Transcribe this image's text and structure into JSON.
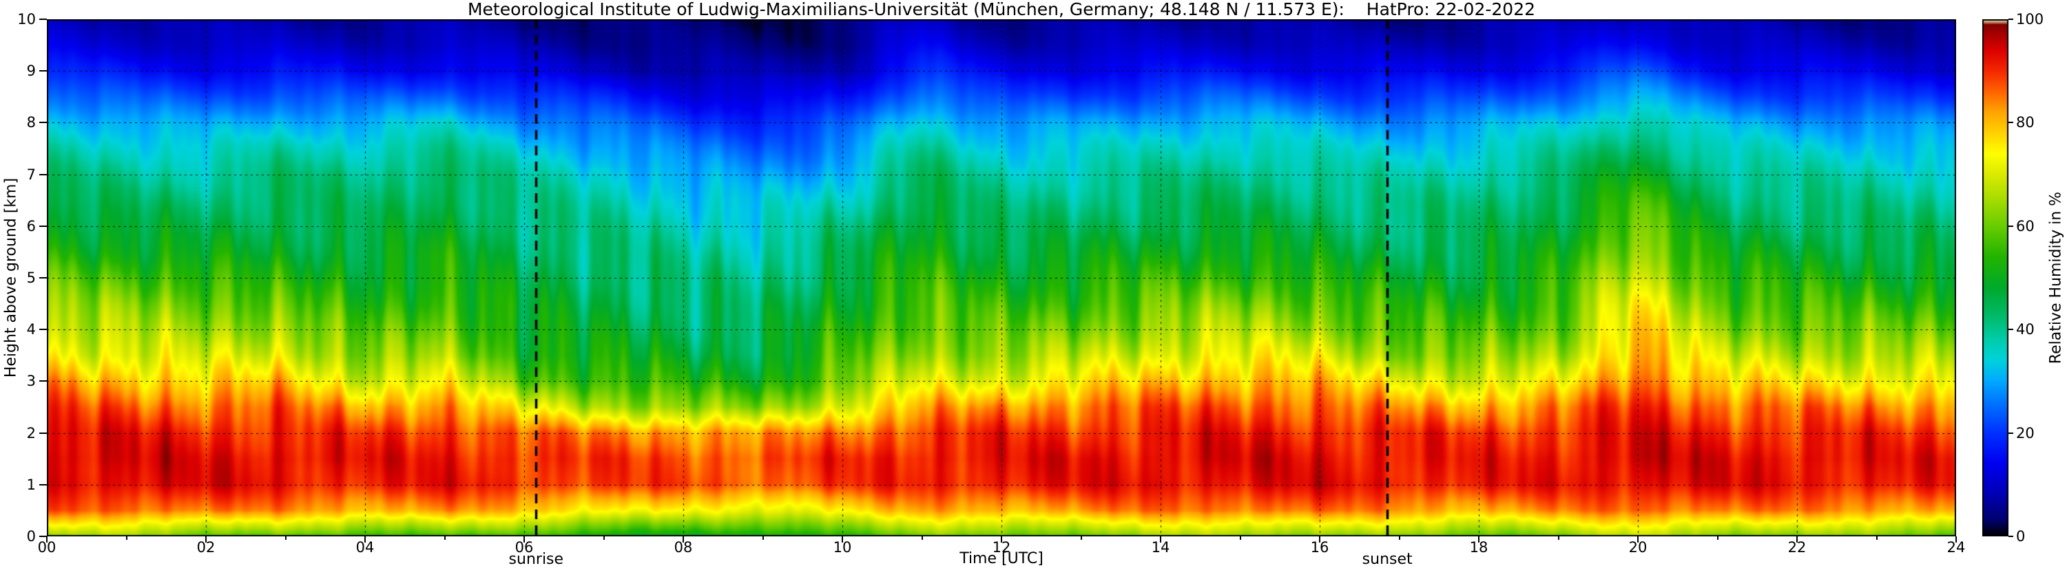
{
  "title": "Meteorological Institute of Ludwig-Maximilians-Universität (München, Germany; 48.148 N / 11.573 E):    HatPro: 22-02-2022",
  "axes": {
    "x_label": "Time [UTC]",
    "y_label": "Height above ground [km]",
    "x_ticks": [
      "00",
      "02",
      "04",
      "06",
      "08",
      "10",
      "12",
      "14",
      "16",
      "18",
      "20",
      "22",
      "24"
    ],
    "y_ticks": [
      "0",
      "1",
      "2",
      "3",
      "4",
      "5",
      "6",
      "7",
      "8",
      "9",
      "10"
    ],
    "x_range": [
      0,
      24
    ],
    "y_range": [
      0,
      10
    ]
  },
  "colorbar": {
    "label": "Relative Humidity in %",
    "ticks": [
      "0",
      "20",
      "40",
      "60",
      "80",
      "100"
    ],
    "range": [
      0,
      100
    ],
    "stops": [
      [
        0,
        "#000000"
      ],
      [
        3,
        "#00006e"
      ],
      [
        8,
        "#0000b4"
      ],
      [
        14,
        "#0000f0"
      ],
      [
        20,
        "#0032ff"
      ],
      [
        26,
        "#0078ff"
      ],
      [
        30,
        "#00aaff"
      ],
      [
        34,
        "#00d2dc"
      ],
      [
        38,
        "#00cdaa"
      ],
      [
        43,
        "#00b964"
      ],
      [
        48,
        "#00aa2d"
      ],
      [
        54,
        "#23b400"
      ],
      [
        60,
        "#69cd00"
      ],
      [
        65,
        "#a5dc00"
      ],
      [
        70,
        "#dceb00"
      ],
      [
        74,
        "#ffff00"
      ],
      [
        78,
        "#ffd200"
      ],
      [
        82,
        "#ffa500"
      ],
      [
        86,
        "#ff6400"
      ],
      [
        90,
        "#f52800"
      ],
      [
        94,
        "#dc0000"
      ],
      [
        97,
        "#aa0000"
      ],
      [
        99,
        "#820000"
      ],
      [
        99.5,
        "#c8a06e"
      ],
      [
        100,
        "#f0e6c8"
      ]
    ]
  },
  "annotations": {
    "sunrise": {
      "label": "sunrise",
      "time_utc": 6.15
    },
    "sunset": {
      "label": "sunset",
      "time_utc": 16.85
    }
  },
  "chart_data": {
    "type": "heatmap",
    "title": "HatPro relative humidity time-height cross section",
    "instrument": "HatPro",
    "date": "22-02-2022",
    "location": "München, Germany",
    "coordinates": "48.148 N / 11.573 E",
    "xlabel": "Time [UTC]",
    "ylabel": "Height above ground [km]",
    "value_label": "Relative Humidity in %",
    "x_range": [
      0,
      24
    ],
    "y_range": [
      0,
      10
    ],
    "value_range": [
      0,
      100
    ],
    "sunrise_utc": 6.15,
    "sunset_utc": 16.85,
    "x_hours": [
      0,
      1,
      2,
      3,
      4,
      5,
      6,
      7,
      8,
      9,
      10,
      11,
      12,
      13,
      14,
      15,
      16,
      17,
      18,
      19,
      20,
      21,
      22,
      23,
      24
    ],
    "heights_km": [
      0,
      0.5,
      1,
      1.5,
      2,
      2.5,
      3,
      3.5,
      4,
      4.5,
      5,
      5.5,
      6,
      6.5,
      7,
      7.5,
      8,
      8.5,
      9,
      9.5,
      10
    ],
    "rh_percent": [
      [
        62,
        86,
        93,
        94,
        92,
        88,
        82,
        74,
        68,
        63,
        58,
        53,
        49,
        45,
        42,
        38,
        33,
        26,
        18,
        12,
        9
      ],
      [
        64,
        87,
        94,
        94,
        92,
        87,
        80,
        71,
        66,
        62,
        57,
        51,
        47,
        43,
        40,
        36,
        31,
        23,
        16,
        11,
        8
      ],
      [
        60,
        85,
        93,
        93,
        91,
        85,
        76,
        69,
        64,
        60,
        55,
        49,
        45,
        42,
        38,
        34,
        29,
        22,
        15,
        10,
        7
      ],
      [
        58,
        83,
        92,
        93,
        90,
        86,
        79,
        71,
        65,
        58,
        52,
        48,
        46,
        44,
        42,
        38,
        32,
        24,
        16,
        10,
        7
      ],
      [
        55,
        81,
        91,
        92,
        89,
        81,
        69,
        61,
        56,
        52,
        50,
        47,
        44,
        42,
        40,
        36,
        30,
        22,
        14,
        9,
        6
      ],
      [
        58,
        83,
        92,
        92,
        90,
        84,
        73,
        65,
        61,
        57,
        53,
        51,
        48,
        46,
        44,
        40,
        34,
        25,
        16,
        10,
        7
      ],
      [
        55,
        79,
        90,
        90,
        86,
        72,
        59,
        53,
        50,
        48,
        46,
        44,
        42,
        40,
        38,
        34,
        28,
        20,
        12,
        8,
        5
      ],
      [
        52,
        76,
        89,
        89,
        84,
        66,
        56,
        51,
        48,
        46,
        44,
        42,
        40,
        38,
        35,
        30,
        25,
        18,
        10,
        6,
        4
      ],
      [
        50,
        73,
        88,
        88,
        83,
        63,
        53,
        48,
        45,
        43,
        41,
        39,
        37,
        34,
        30,
        26,
        21,
        14,
        8,
        5,
        3
      ],
      [
        50,
        71,
        87,
        87,
        81,
        61,
        51,
        46,
        44,
        42,
        40,
        38,
        35,
        32,
        28,
        24,
        19,
        12,
        7,
        4,
        3
      ],
      [
        55,
        76,
        89,
        90,
        85,
        71,
        61,
        56,
        53,
        50,
        47,
        44,
        40,
        36,
        32,
        27,
        22,
        15,
        9,
        5,
        3
      ],
      [
        61,
        81,
        91,
        92,
        89,
        81,
        71,
        65,
        61,
        58,
        55,
        52,
        50,
        47,
        44,
        40,
        35,
        28,
        20,
        14,
        10
      ],
      [
        58,
        81,
        92,
        92,
        90,
        83,
        71,
        63,
        58,
        54,
        50,
        46,
        43,
        40,
        37,
        33,
        28,
        20,
        13,
        8,
        5
      ],
      [
        61,
        83,
        92,
        93,
        90,
        85,
        75,
        67,
        61,
        56,
        52,
        48,
        44,
        41,
        38,
        34,
        29,
        21,
        14,
        9,
        6
      ],
      [
        63,
        85,
        93,
        93,
        91,
        87,
        79,
        71,
        65,
        60,
        55,
        50,
        46,
        43,
        40,
        36,
        31,
        23,
        15,
        10,
        7
      ],
      [
        64,
        86,
        93,
        94,
        92,
        88,
        81,
        73,
        67,
        62,
        56,
        51,
        47,
        44,
        41,
        37,
        32,
        24,
        16,
        10,
        7
      ],
      [
        63,
        85,
        93,
        93,
        91,
        86,
        79,
        71,
        64,
        59,
        53,
        48,
        45,
        42,
        39,
        35,
        30,
        22,
        14,
        9,
        6
      ],
      [
        61,
        83,
        92,
        92,
        90,
        83,
        73,
        63,
        57,
        53,
        49,
        45,
        42,
        40,
        37,
        33,
        28,
        20,
        13,
        8,
        5
      ],
      [
        59,
        81,
        91,
        91,
        89,
        81,
        69,
        61,
        56,
        52,
        48,
        45,
        43,
        41,
        38,
        34,
        29,
        21,
        14,
        9,
        6
      ],
      [
        61,
        83,
        92,
        92,
        90,
        84,
        73,
        65,
        60,
        56,
        53,
        50,
        47,
        45,
        42,
        38,
        33,
        25,
        17,
        11,
        8
      ],
      [
        66,
        87,
        94,
        95,
        93,
        91,
        87,
        83,
        79,
        75,
        70,
        66,
        62,
        57,
        51,
        45,
        39,
        31,
        23,
        16,
        11
      ],
      [
        63,
        85,
        93,
        93,
        91,
        86,
        77,
        69,
        63,
        59,
        55,
        50,
        46,
        43,
        40,
        36,
        31,
        23,
        15,
        10,
        7
      ],
      [
        61,
        84,
        92,
        93,
        90,
        85,
        75,
        67,
        61,
        56,
        52,
        48,
        44,
        41,
        38,
        34,
        29,
        21,
        14,
        9,
        6
      ],
      [
        61,
        83,
        92,
        92,
        90,
        84,
        74,
        66,
        60,
        55,
        50,
        46,
        43,
        40,
        37,
        33,
        28,
        20,
        13,
        8,
        5
      ],
      [
        59,
        82,
        91,
        92,
        89,
        83,
        73,
        65,
        59,
        54,
        49,
        45,
        42,
        39,
        36,
        32,
        27,
        19,
        12,
        8,
        5
      ]
    ]
  }
}
